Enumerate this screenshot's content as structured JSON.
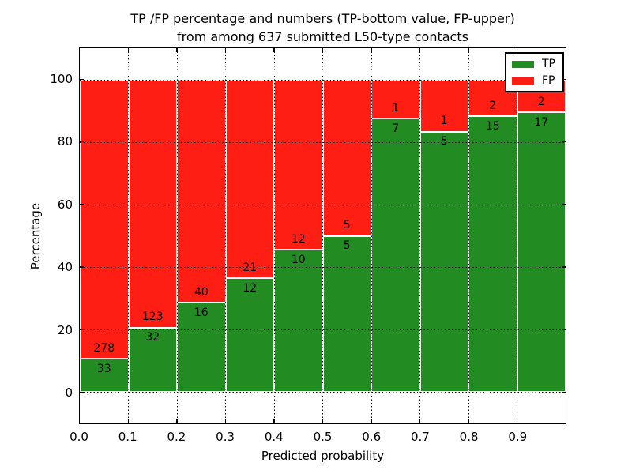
{
  "title": {
    "line1": "TP /FP percentage and numbers (TP-bottom value, FP-upper)",
    "line2": "from among 637 submitted L50-type contacts"
  },
  "axes": {
    "xlabel": "Predicted probability",
    "ylabel": "Percentage",
    "x_tick_labels": [
      "0.0",
      "0.1",
      "0.2",
      "0.3",
      "0.4",
      "0.5",
      "0.6",
      "0.7",
      "0.8",
      "0.9"
    ],
    "y_tick_labels": [
      "0",
      "20",
      "40",
      "60",
      "80",
      "100"
    ],
    "y_tick_values": [
      0,
      20,
      40,
      60,
      80,
      100
    ]
  },
  "legend": {
    "position": "upper right",
    "entries": [
      {
        "label": "TP",
        "color": "#228b22"
      },
      {
        "label": "FP",
        "color": "#ff1e14"
      }
    ]
  },
  "chart_data": {
    "type": "bar",
    "stacked": true,
    "orientation": "vertical",
    "title": "TP /FP percentage and numbers (TP-bottom value, FP-upper) from among 637 submitted L50-type contacts",
    "xlabel": "Predicted probability",
    "ylabel": "Percentage",
    "total_contacts": 637,
    "bins": [
      "0.0-0.1",
      "0.1-0.2",
      "0.2-0.3",
      "0.3-0.4",
      "0.4-0.5",
      "0.5-0.6",
      "0.6-0.7",
      "0.7-0.8",
      "0.8-0.9",
      "0.9-1.0"
    ],
    "xlim": [
      0.0,
      1.0
    ],
    "ylim": [
      -10,
      110
    ],
    "grid": true,
    "gridline_style": "dotted",
    "legend_position": "upper right",
    "series": [
      {
        "name": "TP",
        "color": "#228b22",
        "counts": [
          33,
          32,
          16,
          12,
          10,
          5,
          7,
          5,
          15,
          17
        ],
        "percent": [
          10.6,
          20.6,
          28.6,
          36.4,
          45.5,
          50.0,
          87.5,
          83.3,
          88.2,
          89.5
        ]
      },
      {
        "name": "FP",
        "color": "#ff1e14",
        "counts": [
          278,
          123,
          40,
          21,
          12,
          5,
          1,
          1,
          2,
          2
        ],
        "percent": [
          89.4,
          79.4,
          71.4,
          63.6,
          54.5,
          50.0,
          12.5,
          16.7,
          11.8,
          10.5
        ]
      }
    ]
  }
}
